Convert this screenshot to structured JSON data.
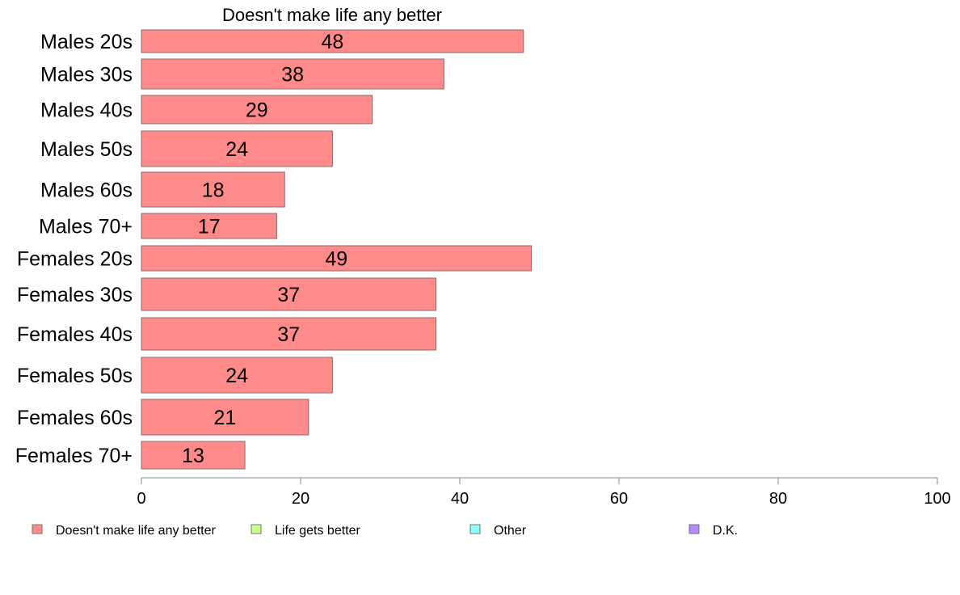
{
  "chart_data": {
    "type": "bar",
    "orientation": "horizontal",
    "title": "Doesn't make life any better",
    "categories": [
      "Males 20s",
      "Males 30s",
      "Males 40s",
      "Males 50s",
      "Males 60s",
      "Males 70+",
      "Females 20s",
      "Females 30s",
      "Females 40s",
      "Females 50s",
      "Females 60s",
      "Females 70+"
    ],
    "series": [
      {
        "name": "Doesn't make life any better",
        "values": [
          48,
          38,
          29,
          24,
          18,
          17,
          49,
          37,
          37,
          24,
          21,
          13
        ]
      }
    ],
    "xlim": [
      0,
      100
    ],
    "xticks": [
      0,
      20,
      40,
      60,
      80,
      100
    ],
    "grid": false,
    "legend_position": "bottom",
    "legend": [
      {
        "label": "Doesn't make life any better",
        "color": "#ff8a8a"
      },
      {
        "label": "Life gets better",
        "color": "#c8ff8a"
      },
      {
        "label": "Other",
        "color": "#8affff"
      },
      {
        "label": "D.K.",
        "color": "#b48aff"
      }
    ],
    "colors": {
      "bar": "#ff8a8a",
      "bar_border": "#8c6a6a",
      "axis": "#888888"
    }
  }
}
